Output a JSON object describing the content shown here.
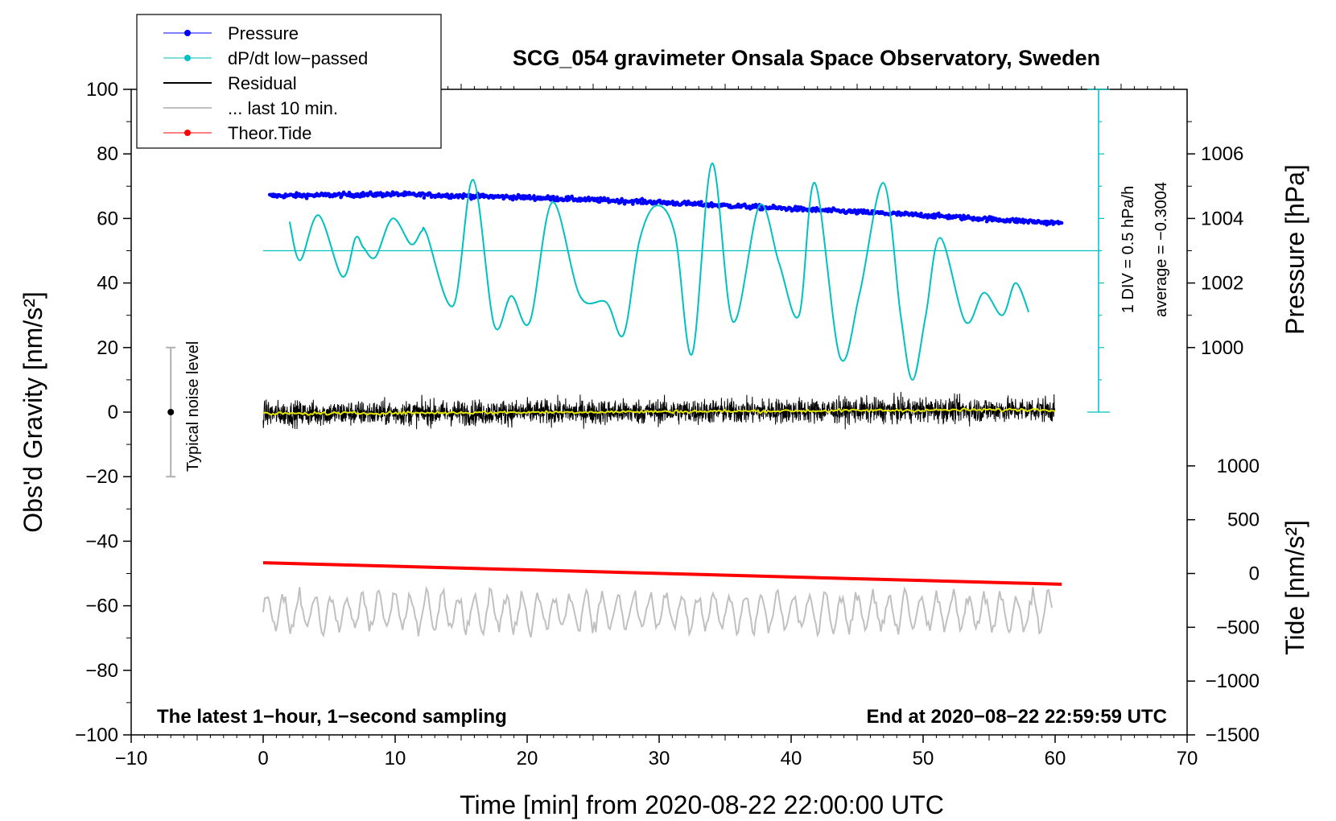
{
  "chart_data": {
    "type": "line",
    "title": "SCG_054 gravimeter Onsala Space Observatory, Sweden",
    "xlabel": "Time [min] from 2020-08-22 22:00:00 UTC",
    "ylabel_left": "Obs'd Gravity [nm/s²]",
    "ylabel_pressure": "Pressure [hPa]",
    "ylabel_tide": "Tide [nm/s²]",
    "xlim": [
      -10,
      70
    ],
    "ylim_left": [
      -100,
      100
    ],
    "x_ticks": [
      "−10",
      "0",
      "10",
      "20",
      "30",
      "40",
      "50",
      "60",
      "70"
    ],
    "y_ticks_left": [
      "−100",
      "−80",
      "−60",
      "−40",
      "−20",
      "0",
      "20",
      "40",
      "60",
      "80",
      "100"
    ],
    "pressure_ticks": [
      "1000",
      "1002",
      "1004",
      "1006"
    ],
    "tide_ticks": [
      "−1500",
      "−1000",
      "−500",
      "0",
      "500",
      "1000"
    ],
    "legend": [
      {
        "label": "Pressure",
        "color": "#0000ff",
        "marker": "dot"
      },
      {
        "label": "dP/dt low−passed",
        "color": "#00c0c0",
        "marker": "dot"
      },
      {
        "label": "Residual",
        "color": "#000000",
        "marker": "line"
      },
      {
        "label": "... last 10 min.",
        "color": "#c0c0c0",
        "marker": "line"
      },
      {
        "label": "Theor.Tide",
        "color": "#ff0000",
        "marker": "dot"
      }
    ],
    "annotations": {
      "bottom_left": "The latest 1−hour, 1−second sampling",
      "bottom_right": "End at 2020−08−22 22:59:59 UTC",
      "noise_label": "Typical noise level",
      "div_label": "1 DIV = 0.5 hPa/h",
      "average_label": "average = −0.3004"
    },
    "series": {
      "pressure": {
        "x": [
          0.5,
          10,
          20,
          30,
          40,
          50,
          60.5
        ],
        "hPa": [
          1004.7,
          1004.75,
          1004.65,
          1004.5,
          1004.3,
          1004.1,
          1003.85
        ]
      },
      "dpdt": {
        "x": [
          2.0,
          2.8,
          4.2,
          6.0,
          7.0,
          7.6,
          8.5,
          9.8,
          11.2,
          12.0,
          12.4,
          14.4,
          15.9,
          17.5,
          18.8,
          20.2,
          21.9,
          24.0,
          26.0,
          27.3,
          28.5,
          29.8,
          31.2,
          32.5,
          34.0,
          35.6,
          37.6,
          39.1,
          40.6,
          41.8,
          43.7,
          45.2,
          47.0,
          48.3,
          49.2,
          50.2,
          51.3,
          53.2,
          54.6,
          56.0,
          57.0,
          58.0
        ],
        "y": [
          59,
          47,
          61,
          42,
          54,
          51,
          48,
          60,
          52,
          56,
          55,
          33,
          72,
          27,
          36,
          28,
          65,
          36,
          34,
          24,
          53,
          64,
          55,
          18,
          77,
          28,
          64,
          46,
          30,
          71,
          17,
          37,
          71,
          30,
          10,
          30,
          54,
          28,
          37,
          30,
          40,
          31
        ]
      },
      "residual_mean": {
        "x": [
          0,
          60
        ],
        "y": [
          -0.5,
          0.8
        ],
        "noise_amplitude": 5
      },
      "tide": {
        "x": [
          0,
          60.5
        ],
        "nm_s2": [
          100,
          -100
        ]
      },
      "last_10_min": {
        "center_y": -62,
        "amplitude": 8
      },
      "noise_level": {
        "x": -7,
        "range": [
          -20,
          20
        ]
      }
    }
  }
}
